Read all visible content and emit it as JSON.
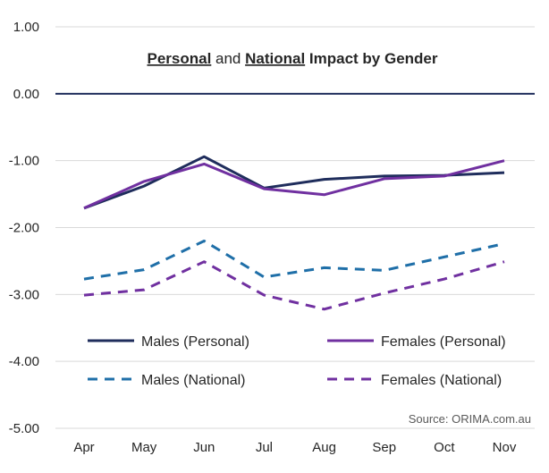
{
  "chart_data": {
    "type": "line",
    "title_parts": [
      {
        "text": "Personal",
        "style": "underline-bold"
      },
      {
        "text": " and ",
        "style": "plain"
      },
      {
        "text": "National",
        "style": "underline-bold"
      },
      {
        "text": " Impact by Gender",
        "style": "bold"
      }
    ],
    "categories": [
      "Apr",
      "May",
      "Jun",
      "Jul",
      "Aug",
      "Sep",
      "Oct",
      "Nov"
    ],
    "y_ticks": [
      "1.00",
      "0.00",
      "-1.00",
      "-2.00",
      "-3.00",
      "-4.00",
      "-5.00"
    ],
    "ylim": [
      -5,
      1
    ],
    "grid": true,
    "legend_position": "bottom-inside",
    "source": "Source: ORIMA.com.au",
    "series": [
      {
        "name": "Males (Personal)",
        "values": [
          -1.71,
          -1.38,
          -0.94,
          -1.41,
          -1.28,
          -1.23,
          -1.22,
          -1.18
        ],
        "color": "#1f2d5c",
        "dash": "solid"
      },
      {
        "name": "Females (Personal)",
        "values": [
          -1.71,
          -1.31,
          -1.05,
          -1.42,
          -1.51,
          -1.27,
          -1.23,
          -1.0
        ],
        "color": "#7030a0",
        "dash": "solid"
      },
      {
        "name": "Males (National)",
        "values": [
          -2.77,
          -2.63,
          -2.2,
          -2.74,
          -2.6,
          -2.64,
          -2.44,
          -2.24
        ],
        "color": "#1f6fa8",
        "dash": "dashed"
      },
      {
        "name": "Females (National)",
        "values": [
          -3.01,
          -2.93,
          -2.51,
          -3.01,
          -3.22,
          -2.98,
          -2.77,
          -2.51
        ],
        "color": "#7030a0",
        "dash": "dashed"
      }
    ],
    "zero_line_color": "#1f2d5c"
  }
}
